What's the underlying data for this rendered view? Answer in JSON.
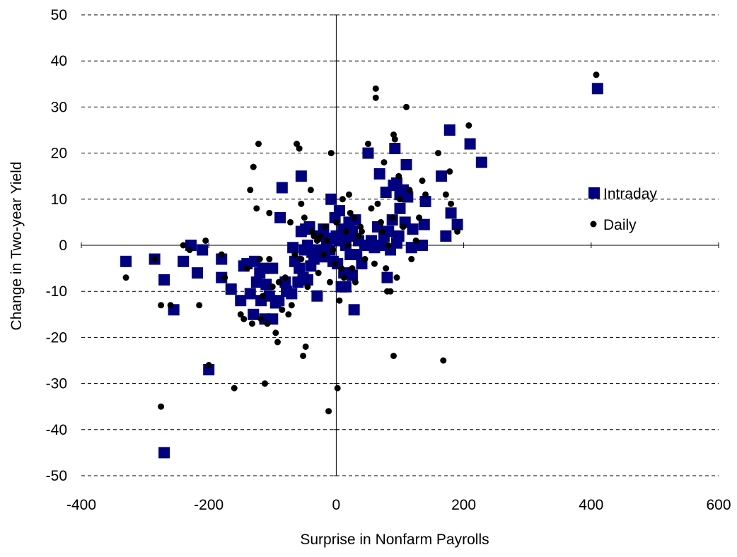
{
  "chart_data": {
    "type": "scatter",
    "title": "",
    "xlabel": "Surprise in Nonfarm Payrolls",
    "ylabel": "Change in Two-year Yield",
    "xlim": [
      -400,
      600
    ],
    "ylim": [
      -50,
      50
    ],
    "xticks": [
      -400,
      -200,
      0,
      200,
      400,
      600
    ],
    "yticks": [
      -50,
      -40,
      -30,
      -20,
      -10,
      0,
      10,
      20,
      30,
      40,
      50
    ],
    "grid": "horizontal-dashed",
    "legend_position": "right",
    "colors": {
      "intraday": "#000080",
      "daily": "#000000",
      "gridline": "#000000",
      "axis": "#000000"
    },
    "series": [
      {
        "name": "Intraday",
        "marker": "square",
        "points": [
          [
            -330,
            -3.5
          ],
          [
            -285,
            -3
          ],
          [
            -270,
            -45
          ],
          [
            -270,
            -7.5
          ],
          [
            -255,
            -14
          ],
          [
            -240,
            -3.5
          ],
          [
            -228,
            0
          ],
          [
            -218,
            -6
          ],
          [
            -210,
            -1
          ],
          [
            -200,
            -27
          ],
          [
            -180,
            -3
          ],
          [
            -180,
            -7
          ],
          [
            -165,
            -9.5
          ],
          [
            -150,
            -12
          ],
          [
            -145,
            -4.5
          ],
          [
            -140,
            -4
          ],
          [
            -135,
            -10.5
          ],
          [
            -130,
            -15
          ],
          [
            -128,
            -3.5
          ],
          [
            -125,
            -8
          ],
          [
            -120,
            -6
          ],
          [
            -118,
            -12
          ],
          [
            -115,
            -5
          ],
          [
            -112,
            -16
          ],
          [
            -110,
            -8.5
          ],
          [
            -105,
            -11
          ],
          [
            -100,
            -5
          ],
          [
            -100,
            -16
          ],
          [
            -95,
            -12.5
          ],
          [
            -90,
            -12
          ],
          [
            -88,
            6
          ],
          [
            -85,
            12.5
          ],
          [
            -80,
            -8
          ],
          [
            -78,
            -10
          ],
          [
            -70,
            -10.5
          ],
          [
            -68,
            -0.5
          ],
          [
            -65,
            -3.5
          ],
          [
            -60,
            -8
          ],
          [
            -58,
            -5
          ],
          [
            -55,
            15
          ],
          [
            -55,
            3
          ],
          [
            -52,
            -7
          ],
          [
            -50,
            -1
          ],
          [
            -48,
            3.5
          ],
          [
            -45,
            0
          ],
          [
            -45,
            -7.5
          ],
          [
            -42,
            4
          ],
          [
            -40,
            -4.5
          ],
          [
            -38,
            -1.5
          ],
          [
            -35,
            -3
          ],
          [
            -30,
            -11
          ],
          [
            -28,
            -1
          ],
          [
            -25,
            2
          ],
          [
            -20,
            3.5
          ],
          [
            -18,
            -2.5
          ],
          [
            -15,
            0
          ],
          [
            -12,
            1.5
          ],
          [
            -10,
            -1
          ],
          [
            -8,
            10
          ],
          [
            -5,
            -3.5
          ],
          [
            -2,
            6
          ],
          [
            0,
            2
          ],
          [
            2,
            -4
          ],
          [
            5,
            1
          ],
          [
            5,
            7.5
          ],
          [
            8,
            -9
          ],
          [
            10,
            3.5
          ],
          [
            12,
            -6
          ],
          [
            15,
            0
          ],
          [
            15,
            -9
          ],
          [
            18,
            2
          ],
          [
            20,
            5
          ],
          [
            22,
            -2
          ],
          [
            25,
            3
          ],
          [
            25,
            -6.5
          ],
          [
            28,
            -14
          ],
          [
            30,
            5.5
          ],
          [
            32,
            -2
          ],
          [
            35,
            1
          ],
          [
            40,
            -4
          ],
          [
            45,
            0
          ],
          [
            50,
            20
          ],
          [
            55,
            1
          ],
          [
            60,
            -0.5
          ],
          [
            65,
            4
          ],
          [
            68,
            15.5
          ],
          [
            72,
            0
          ],
          [
            75,
            2
          ],
          [
            78,
            11.5
          ],
          [
            80,
            -7
          ],
          [
            82,
            3
          ],
          [
            85,
            -1
          ],
          [
            88,
            5.5
          ],
          [
            90,
            13
          ],
          [
            92,
            21
          ],
          [
            95,
            0.5
          ],
          [
            95,
            13.5
          ],
          [
            98,
            2
          ],
          [
            100,
            8
          ],
          [
            100,
            11
          ],
          [
            105,
            12
          ],
          [
            108,
            5
          ],
          [
            110,
            17.5
          ],
          [
            112,
            10.5
          ],
          [
            118,
            -0.5
          ],
          [
            120,
            3.5
          ],
          [
            135,
            0
          ],
          [
            138,
            4.5
          ],
          [
            140,
            9.5
          ],
          [
            165,
            15
          ],
          [
            172,
            2
          ],
          [
            178,
            25
          ],
          [
            180,
            7
          ],
          [
            190,
            4.5
          ],
          [
            210,
            22
          ],
          [
            228,
            18
          ],
          [
            410,
            34
          ]
        ]
      },
      {
        "name": "Daily",
        "marker": "circle",
        "points": [
          [
            -330,
            -7
          ],
          [
            -285,
            -3
          ],
          [
            -275,
            -13
          ],
          [
            -275,
            -35
          ],
          [
            -260,
            -13
          ],
          [
            -240,
            0
          ],
          [
            -230,
            -1
          ],
          [
            -215,
            -13
          ],
          [
            -205,
            1
          ],
          [
            -200,
            -26
          ],
          [
            -180,
            -2
          ],
          [
            -175,
            -7
          ],
          [
            -160,
            -31
          ],
          [
            -150,
            -15
          ],
          [
            -145,
            -16
          ],
          [
            -140,
            -5
          ],
          [
            -135,
            12
          ],
          [
            -132,
            -17
          ],
          [
            -130,
            17
          ],
          [
            -125,
            8
          ],
          [
            -122,
            22
          ],
          [
            -120,
            -3
          ],
          [
            -118,
            -16
          ],
          [
            -115,
            -11
          ],
          [
            -112,
            -30
          ],
          [
            -108,
            -17
          ],
          [
            -105,
            7
          ],
          [
            -105,
            -3
          ],
          [
            -100,
            -9
          ],
          [
            -95,
            -19
          ],
          [
            -92,
            -21
          ],
          [
            -90,
            -8
          ],
          [
            -85,
            -14
          ],
          [
            -80,
            -7
          ],
          [
            -75,
            -15
          ],
          [
            -72,
            5
          ],
          [
            -70,
            -13
          ],
          [
            -65,
            -2
          ],
          [
            -62,
            22
          ],
          [
            -58,
            21
          ],
          [
            -55,
            9
          ],
          [
            -55,
            -3
          ],
          [
            -52,
            -24
          ],
          [
            -50,
            6
          ],
          [
            -48,
            -22
          ],
          [
            -45,
            -9
          ],
          [
            -40,
            12
          ],
          [
            -38,
            3
          ],
          [
            -35,
            2
          ],
          [
            -30,
            1
          ],
          [
            -28,
            -6
          ],
          [
            -25,
            2
          ],
          [
            -20,
            -2
          ],
          [
            -18,
            4
          ],
          [
            -15,
            1
          ],
          [
            -12,
            -36
          ],
          [
            -10,
            -8
          ],
          [
            -8,
            20
          ],
          [
            -5,
            -1
          ],
          [
            -2,
            -4
          ],
          [
            0,
            5
          ],
          [
            2,
            -31
          ],
          [
            5,
            -12
          ],
          [
            8,
            -5
          ],
          [
            10,
            10
          ],
          [
            12,
            -7
          ],
          [
            15,
            3
          ],
          [
            18,
            0
          ],
          [
            20,
            11
          ],
          [
            22,
            7
          ],
          [
            25,
            -5
          ],
          [
            28,
            6
          ],
          [
            30,
            -8
          ],
          [
            35,
            2
          ],
          [
            38,
            4
          ],
          [
            40,
            3
          ],
          [
            45,
            -3
          ],
          [
            50,
            22
          ],
          [
            55,
            8
          ],
          [
            60,
            -4
          ],
          [
            62,
            32
          ],
          [
            62,
            34
          ],
          [
            65,
            9
          ],
          [
            70,
            5
          ],
          [
            72,
            3
          ],
          [
            75,
            18
          ],
          [
            78,
            -5
          ],
          [
            80,
            -10
          ],
          [
            82,
            0
          ],
          [
            85,
            -10
          ],
          [
            88,
            6
          ],
          [
            90,
            24
          ],
          [
            90,
            -24
          ],
          [
            92,
            23
          ],
          [
            95,
            -7
          ],
          [
            98,
            15
          ],
          [
            100,
            10
          ],
          [
            105,
            4
          ],
          [
            110,
            30
          ],
          [
            115,
            12
          ],
          [
            118,
            -3
          ],
          [
            125,
            1
          ],
          [
            130,
            6
          ],
          [
            135,
            14
          ],
          [
            140,
            11
          ],
          [
            160,
            20
          ],
          [
            168,
            -25
          ],
          [
            172,
            11
          ],
          [
            178,
            16
          ],
          [
            180,
            9
          ],
          [
            190,
            3
          ],
          [
            208,
            26
          ],
          [
            408,
            37
          ]
        ]
      }
    ]
  }
}
